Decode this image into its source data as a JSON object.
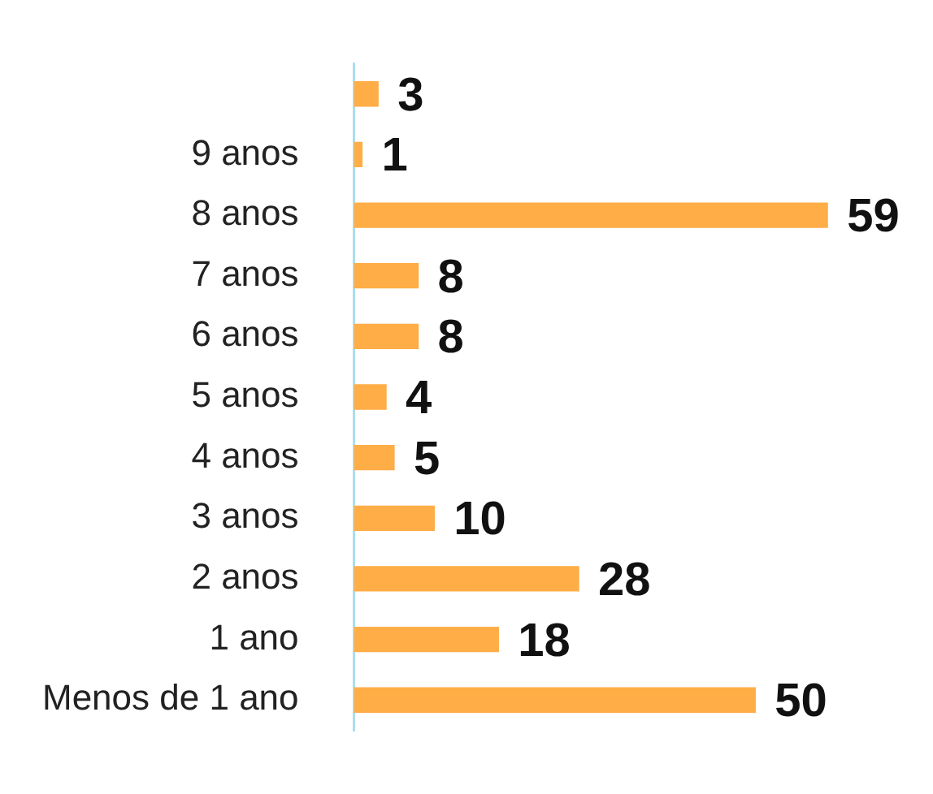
{
  "chart_data": {
    "type": "bar",
    "orientation": "horizontal",
    "categories": [
      null,
      "9 anos",
      "8 anos",
      "7 anos",
      "6 anos",
      "5 anos",
      "4 anos",
      "3 anos",
      "2 anos",
      "1 ano",
      "Menos de 1 ano"
    ],
    "values": [
      3,
      1,
      59,
      8,
      8,
      4,
      5,
      10,
      28,
      18,
      50
    ],
    "color": "#ffad47",
    "data_labels": true
  }
}
